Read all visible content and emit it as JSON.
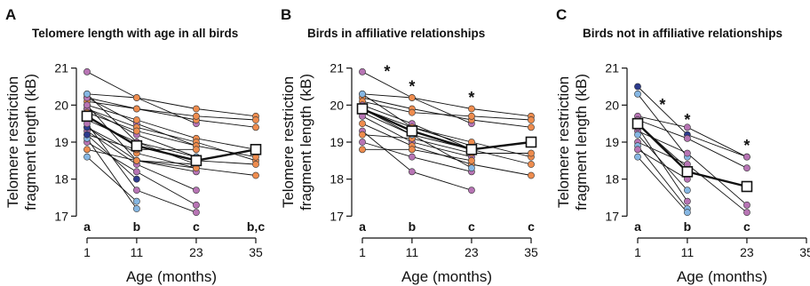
{
  "colors": {
    "orange": "#EE8C4E",
    "purple": "#B774B4",
    "lightblue": "#86B7E3",
    "darkblue": "#2C3A8C",
    "line": "#111111",
    "mean_fill": "#ffffff"
  },
  "chart_data": [
    {
      "type": "line",
      "panel_label": "A",
      "title": "Telomere length with age in all birds",
      "xlabel": "Age (months)",
      "ylabel": "Telomere restriction fragment length (kB)",
      "ylabel_lines": [
        "Telomere restriction",
        "fragment length (kB)"
      ],
      "x_ticks": [
        1,
        11,
        23,
        35
      ],
      "y_ticks": [
        17,
        18,
        19,
        20,
        21
      ],
      "xlim": [
        1,
        35
      ],
      "ylim": [
        16.6,
        21.4
      ],
      "group_letters": [
        {
          "x": 1,
          "label": "a"
        },
        {
          "x": 11,
          "label": "b"
        },
        {
          "x": 23,
          "label": "c"
        },
        {
          "x": 35,
          "label": "b,c"
        }
      ],
      "significance_stars": [],
      "mean": {
        "x": [
          1,
          11,
          23,
          35
        ],
        "y": [
          19.7,
          18.9,
          18.5,
          18.8
        ]
      },
      "birds": [
        {
          "color": "purple",
          "y": [
            20.9,
            20.2,
            19.5,
            null
          ]
        },
        {
          "color": "orange",
          "y": [
            20.3,
            20.2,
            19.9,
            19.7
          ]
        },
        {
          "color": "orange",
          "y": [
            20.2,
            19.9,
            19.6,
            19.4
          ]
        },
        {
          "color": "orange",
          "y": [
            20.1,
            19.9,
            19.7,
            19.6
          ]
        },
        {
          "color": "purple",
          "y": [
            20.2,
            19.5,
            18.9,
            null
          ]
        },
        {
          "color": "orange",
          "y": [
            20.0,
            19.6,
            19.1,
            18.8
          ]
        },
        {
          "color": "orange",
          "y": [
            19.9,
            19.4,
            19.0,
            18.5
          ]
        },
        {
          "color": "purple",
          "y": [
            19.9,
            19.2,
            18.6,
            null
          ]
        },
        {
          "color": "lightblue",
          "y": [
            20.3,
            19.0,
            18.6,
            null
          ]
        },
        {
          "color": "orange",
          "y": [
            19.8,
            19.3,
            18.9,
            18.6
          ]
        },
        {
          "color": "orange",
          "y": [
            19.7,
            18.9,
            18.5,
            18.4
          ]
        },
        {
          "color": "purple",
          "y": [
            19.6,
            19.0,
            18.4,
            null
          ]
        },
        {
          "color": "orange",
          "y": [
            19.4,
            18.7,
            18.3,
            18.1
          ]
        },
        {
          "color": "purple",
          "y": [
            20.0,
            18.5,
            18.2,
            null
          ]
        },
        {
          "color": "orange",
          "y": [
            19.2,
            18.8,
            18.8,
            null
          ]
        },
        {
          "color": "purple",
          "y": [
            19.3,
            18.4,
            17.7,
            null
          ]
        },
        {
          "color": "darkblue",
          "y": [
            19.4,
            18.5,
            18.4,
            null
          ]
        },
        {
          "color": "purple",
          "y": [
            19.0,
            18.2,
            17.3,
            null
          ]
        },
        {
          "color": "orange",
          "y": [
            18.8,
            18.5,
            18.3,
            null
          ]
        },
        {
          "color": "lightblue",
          "y": [
            18.6,
            17.4,
            null,
            null
          ]
        },
        {
          "color": "lightblue",
          "y": [
            19.1,
            17.2,
            null,
            null
          ]
        },
        {
          "color": "purple",
          "y": [
            19.5,
            17.7,
            17.1,
            null
          ]
        },
        {
          "color": "darkblue",
          "y": [
            19.2,
            18.0,
            null,
            null
          ]
        }
      ]
    },
    {
      "type": "line",
      "panel_label": "B",
      "title": "Birds in affiliative relationships",
      "xlabel": "Age (months)",
      "ylabel": "Telomere restriction fragment length (kB)",
      "ylabel_lines": [
        "Telomere restriction",
        "fragment length (kB)"
      ],
      "x_ticks": [
        1,
        11,
        23,
        35
      ],
      "y_ticks": [
        17,
        18,
        19,
        20,
        21
      ],
      "xlim": [
        1,
        35
      ],
      "ylim": [
        16.6,
        21.4
      ],
      "group_letters": [
        {
          "x": 1,
          "label": "a"
        },
        {
          "x": 11,
          "label": "b"
        },
        {
          "x": 23,
          "label": "c"
        },
        {
          "x": 35,
          "label": "c"
        }
      ],
      "significance_stars": [
        {
          "x": 6,
          "y": 21.0,
          "label": "*"
        },
        {
          "x": 11,
          "y": 20.6,
          "label": "*"
        },
        {
          "x": 23,
          "y": 20.3,
          "label": "*"
        }
      ],
      "mean": {
        "x": [
          1,
          11,
          23,
          35
        ],
        "y": [
          19.9,
          19.3,
          18.8,
          19.0
        ]
      },
      "birds": [
        {
          "color": "purple",
          "y": [
            20.9,
            20.2,
            19.5,
            null
          ]
        },
        {
          "color": "orange",
          "y": [
            20.3,
            20.2,
            19.9,
            19.7
          ]
        },
        {
          "color": "orange",
          "y": [
            20.2,
            19.9,
            19.6,
            19.4
          ]
        },
        {
          "color": "orange",
          "y": [
            20.1,
            19.8,
            19.7,
            19.6
          ]
        },
        {
          "color": "lightblue",
          "y": [
            20.3,
            19.4,
            18.9,
            null
          ]
        },
        {
          "color": "purple",
          "y": [
            20.0,
            19.5,
            18.8,
            null
          ]
        },
        {
          "color": "orange",
          "y": [
            19.9,
            19.4,
            19.0,
            18.6
          ]
        },
        {
          "color": "orange",
          "y": [
            19.8,
            19.2,
            18.8,
            18.4
          ]
        },
        {
          "color": "purple",
          "y": [
            19.7,
            19.0,
            18.6,
            null
          ]
        },
        {
          "color": "orange",
          "y": [
            19.5,
            18.9,
            18.4,
            18.1
          ]
        },
        {
          "color": "purple",
          "y": [
            19.3,
            18.2,
            17.7,
            null
          ]
        },
        {
          "color": "orange",
          "y": [
            19.2,
            19.1,
            18.7,
            18.7
          ]
        },
        {
          "color": "purple",
          "y": [
            19.0,
            18.6,
            18.2,
            null
          ]
        },
        {
          "color": "orange",
          "y": [
            18.8,
            18.8,
            18.5,
            null
          ]
        },
        {
          "color": "lightblue",
          "y": [
            19.9,
            19.2,
            18.3,
            null
          ]
        }
      ]
    },
    {
      "type": "line",
      "panel_label": "C",
      "title": "Birds not in affiliative relationships",
      "xlabel": "Age (months)",
      "ylabel": "Telomere restriction fragment length (kB)",
      "ylabel_lines": [
        "Telomere restriction",
        "fragment length (kB)"
      ],
      "x_ticks": [
        1,
        11,
        23,
        35
      ],
      "y_ticks": [
        17,
        18,
        19,
        20,
        21
      ],
      "xlim": [
        1,
        35
      ],
      "ylim": [
        16.6,
        21.4
      ],
      "group_letters": [
        {
          "x": 1,
          "label": "a"
        },
        {
          "x": 11,
          "label": "b"
        },
        {
          "x": 23,
          "label": "c"
        }
      ],
      "significance_stars": [
        {
          "x": 6,
          "y": 20.1,
          "label": "*"
        },
        {
          "x": 11,
          "y": 19.7,
          "label": "*"
        },
        {
          "x": 23,
          "y": 19.0,
          "label": "*"
        }
      ],
      "mean": {
        "x": [
          1,
          11,
          23
        ],
        "y": [
          19.5,
          18.2,
          17.8
        ]
      },
      "birds": [
        {
          "color": "darkblue",
          "y": [
            20.5,
            19.2,
            18.6
          ]
        },
        {
          "color": "lightblue",
          "y": [
            20.3,
            18.6,
            null
          ]
        },
        {
          "color": "purple",
          "y": [
            19.7,
            19.4,
            18.6
          ]
        },
        {
          "color": "purple",
          "y": [
            19.6,
            19.1,
            18.3
          ]
        },
        {
          "color": "lightblue",
          "y": [
            19.5,
            18.3,
            null
          ]
        },
        {
          "color": "purple",
          "y": [
            19.3,
            18.7,
            17.3
          ]
        },
        {
          "color": "lightblue",
          "y": [
            19.2,
            17.7,
            null
          ]
        },
        {
          "color": "purple",
          "y": [
            19.0,
            18.4,
            17.1
          ]
        },
        {
          "color": "lightblue",
          "y": [
            18.9,
            17.2,
            null
          ]
        },
        {
          "color": "purple",
          "y": [
            18.8,
            18.0,
            null
          ]
        },
        {
          "color": "purple",
          "y": [
            19.4,
            17.4,
            null
          ]
        },
        {
          "color": "lightblue",
          "y": [
            18.6,
            17.1,
            null
          ]
        }
      ]
    }
  ]
}
